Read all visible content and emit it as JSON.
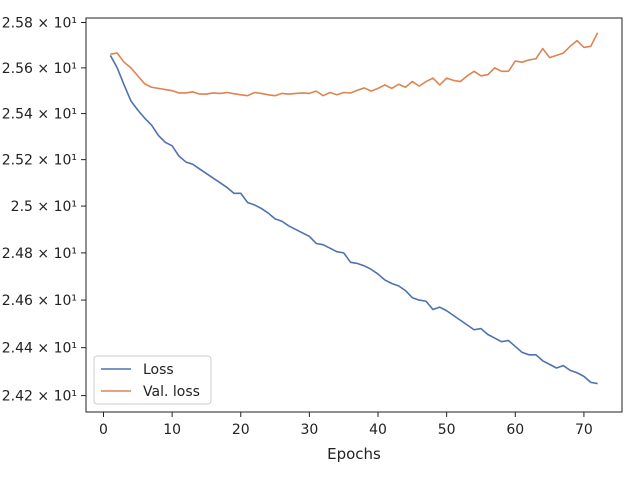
{
  "chart_data": {
    "type": "line",
    "xlabel": "Epochs",
    "ylabel": "",
    "xlim": [
      -2.55,
      75.55
    ],
    "ylim": [
      24.132,
      25.82
    ],
    "xticks": [
      0,
      10,
      20,
      30,
      40,
      50,
      60,
      70
    ],
    "yticks": [
      {
        "value": 24.2,
        "label": "2.42 × 10¹"
      },
      {
        "value": 24.4,
        "label": "2.44 × 10¹"
      },
      {
        "value": 24.6,
        "label": "2.46 × 10¹"
      },
      {
        "value": 24.8,
        "label": "2.48 × 10¹"
      },
      {
        "value": 25.0,
        "label": "2.5 × 10¹"
      },
      {
        "value": 25.2,
        "label": "2.52 × 10¹"
      },
      {
        "value": 25.4,
        "label": "2.54 × 10¹"
      },
      {
        "value": 25.6,
        "label": "2.56 × 10¹"
      },
      {
        "value": 25.8,
        "label": "2.58 × 10¹"
      }
    ],
    "yscale": "log",
    "grid": false,
    "legend_position": "lower-left",
    "x": [
      1,
      2,
      3,
      4,
      5,
      6,
      7,
      8,
      9,
      10,
      11,
      12,
      13,
      14,
      15,
      16,
      17,
      18,
      19,
      20,
      21,
      22,
      23,
      24,
      25,
      26,
      27,
      28,
      29,
      30,
      31,
      32,
      33,
      34,
      35,
      36,
      37,
      38,
      39,
      40,
      41,
      42,
      43,
      44,
      45,
      46,
      47,
      48,
      49,
      50,
      51,
      52,
      53,
      54,
      55,
      56,
      57,
      58,
      59,
      60,
      61,
      62,
      63,
      64,
      65,
      66,
      67,
      68,
      69,
      70,
      71,
      72
    ],
    "series": [
      {
        "name": "Loss",
        "color": "#4c72b0",
        "values": [
          25.655,
          25.6,
          25.525,
          25.455,
          25.415,
          25.38,
          25.35,
          25.305,
          25.275,
          25.26,
          25.215,
          25.19,
          25.18,
          25.16,
          25.14,
          25.12,
          25.1,
          25.08,
          25.055,
          25.055,
          25.015,
          25.005,
          24.99,
          24.97,
          24.945,
          24.935,
          24.915,
          24.9,
          24.885,
          24.87,
          24.84,
          24.835,
          24.82,
          24.805,
          24.8,
          24.76,
          24.755,
          24.745,
          24.73,
          24.71,
          24.685,
          24.67,
          24.66,
          24.64,
          24.61,
          24.6,
          24.595,
          24.56,
          24.57,
          24.555,
          24.535,
          24.515,
          24.495,
          24.475,
          24.48,
          24.455,
          24.44,
          24.425,
          24.43,
          24.405,
          24.38,
          24.37,
          24.37,
          24.345,
          24.33,
          24.315,
          24.325,
          24.305,
          24.295,
          24.28,
          24.255,
          24.25
        ]
      },
      {
        "name": "Val. loss",
        "color": "#dd8452",
        "values": [
          25.66,
          25.665,
          25.625,
          25.6,
          25.565,
          25.53,
          25.515,
          25.51,
          25.505,
          25.5,
          25.49,
          25.49,
          25.495,
          25.485,
          25.485,
          25.49,
          25.488,
          25.492,
          25.487,
          25.482,
          25.478,
          25.492,
          25.488,
          25.482,
          25.478,
          25.488,
          25.485,
          25.488,
          25.49,
          25.488,
          25.498,
          25.478,
          25.492,
          25.482,
          25.492,
          25.49,
          25.502,
          25.512,
          25.498,
          25.51,
          25.525,
          25.51,
          25.528,
          25.515,
          25.54,
          25.52,
          25.54,
          25.555,
          25.525,
          25.555,
          25.545,
          25.54,
          25.565,
          25.585,
          25.565,
          25.57,
          25.6,
          25.585,
          25.585,
          25.63,
          25.625,
          25.635,
          25.64,
          25.685,
          25.645,
          25.655,
          25.665,
          25.695,
          25.72,
          25.69,
          25.695,
          25.755
        ]
      }
    ]
  }
}
